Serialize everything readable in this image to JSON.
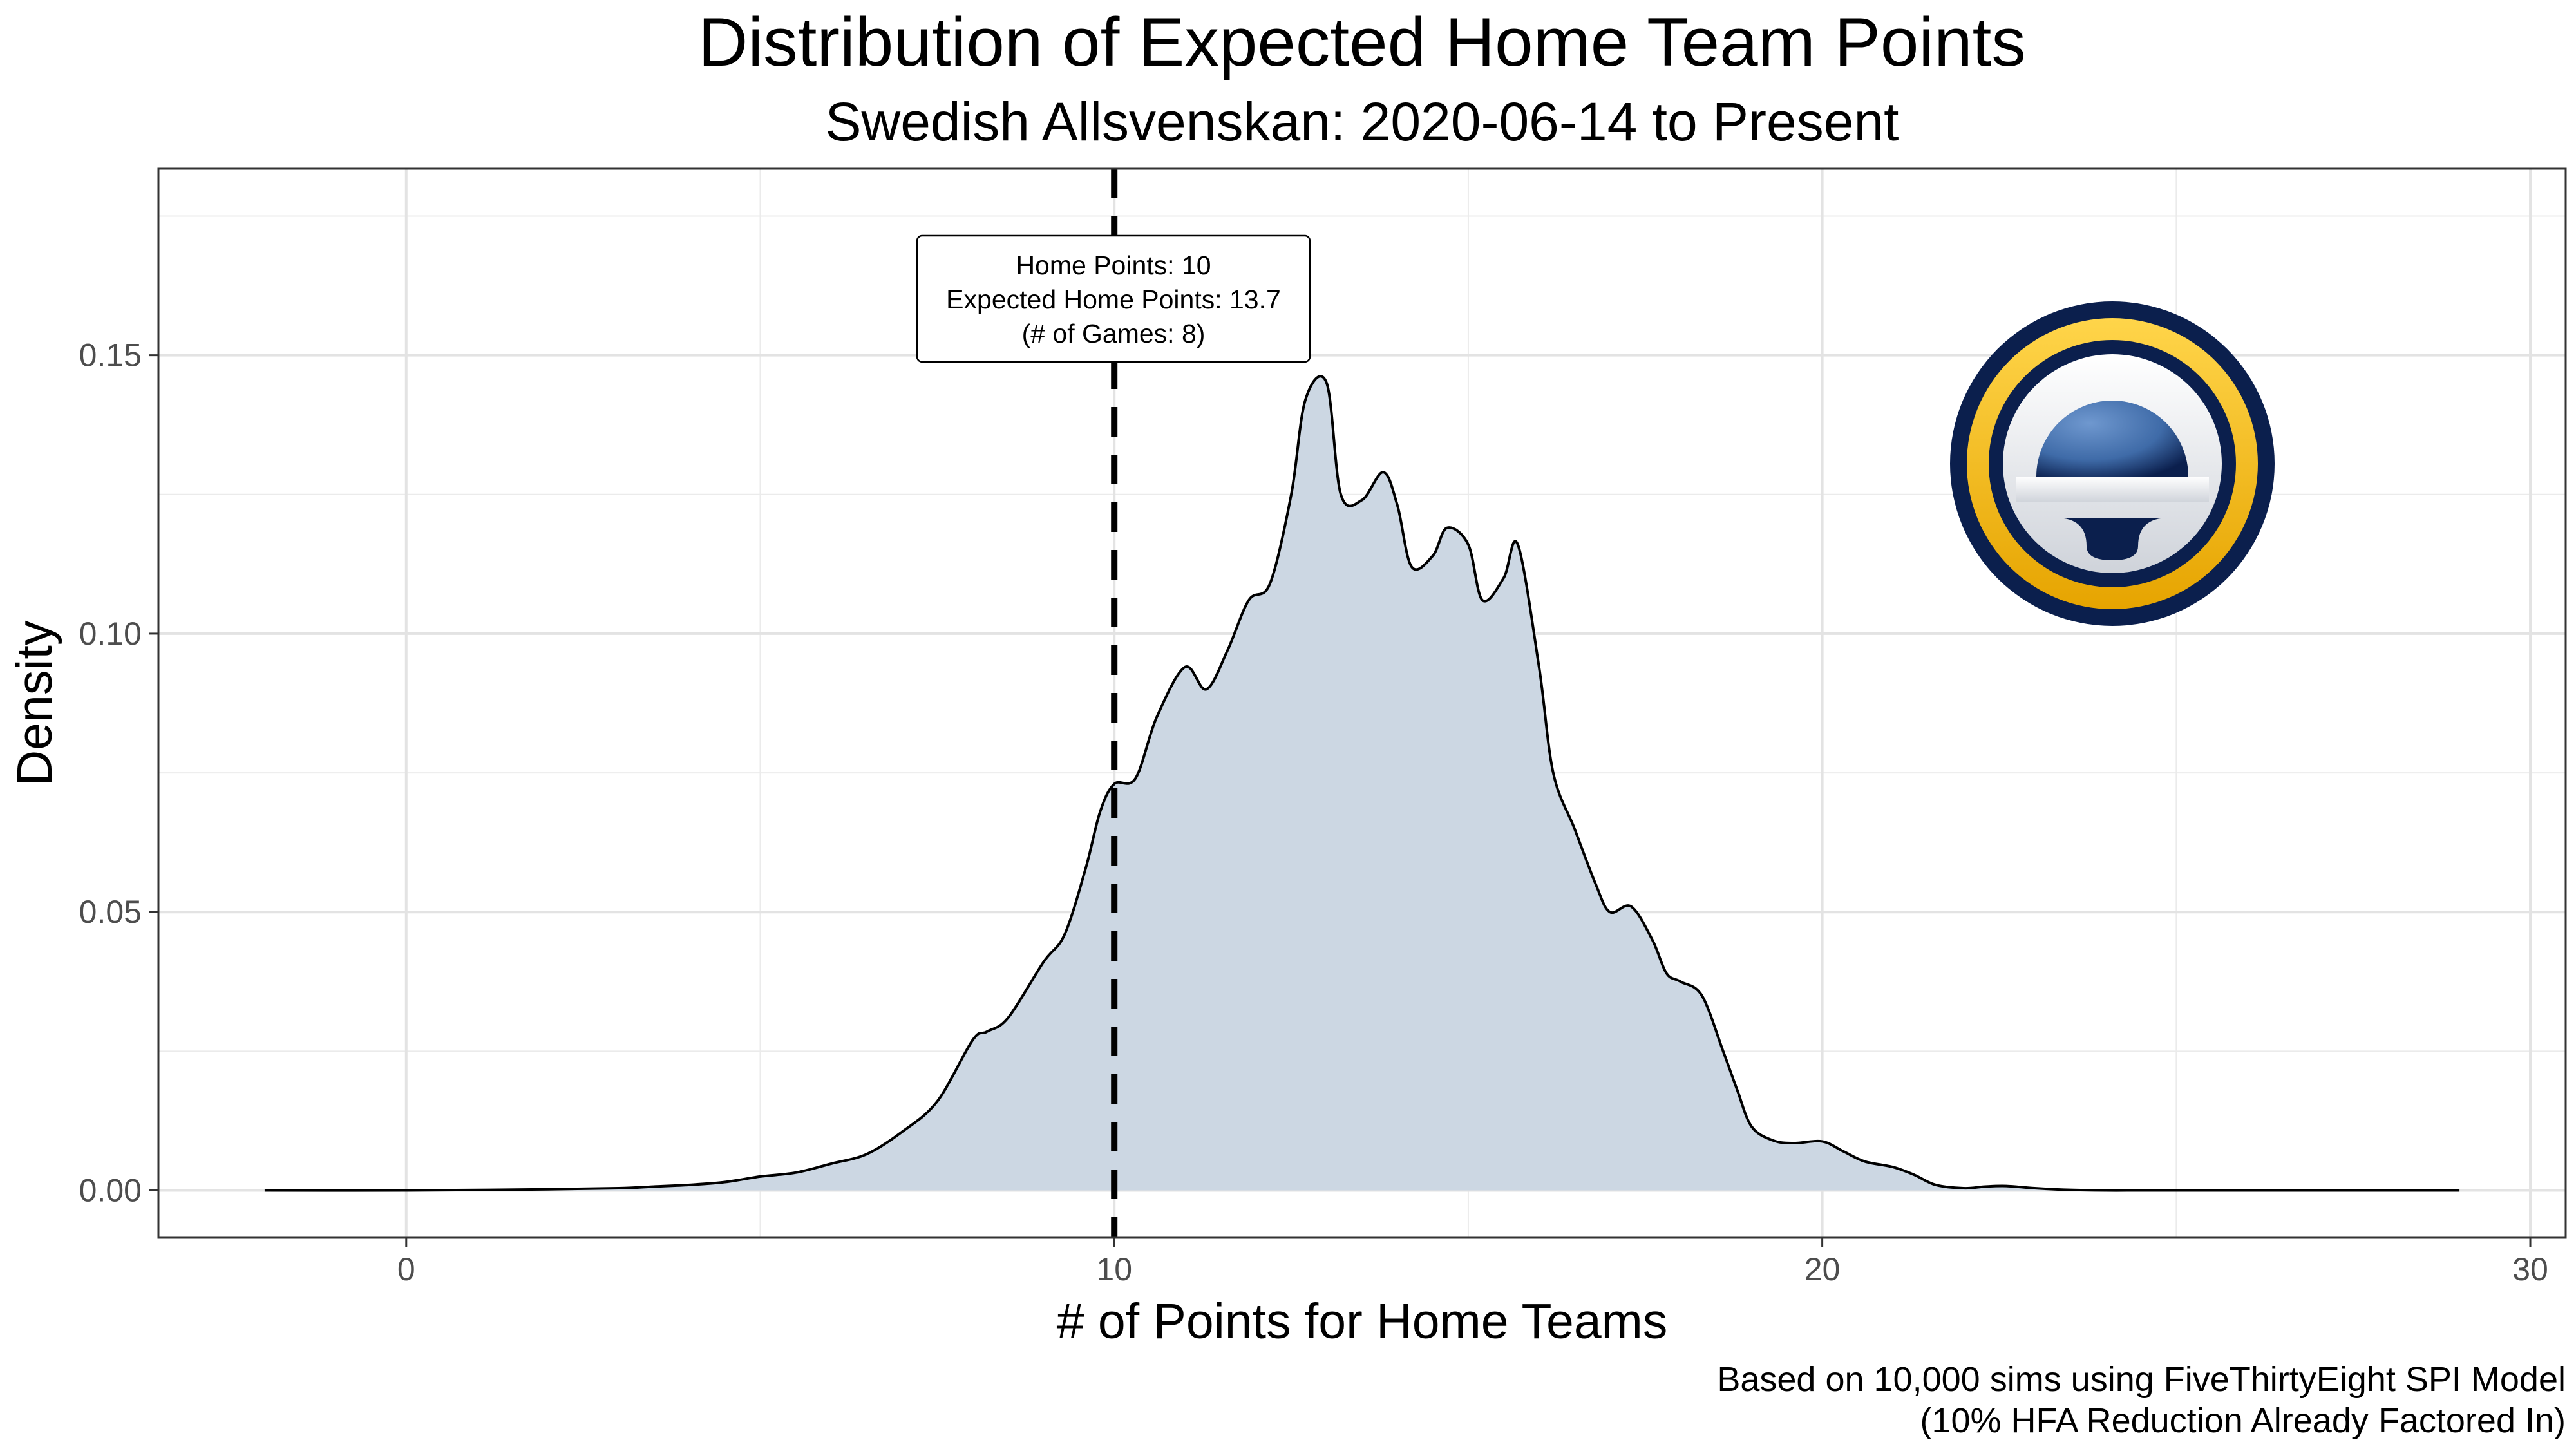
{
  "chart_data": {
    "type": "area",
    "title": "Distribution of Expected Home Team Points",
    "subtitle": "Swedish Allsvenskan: 2020-06-14 to Present",
    "xlabel": "# of Points for Home Teams",
    "ylabel": "Density",
    "xlim": [
      -3.5,
      30.5
    ],
    "ylim": [
      -0.0085,
      0.1835
    ],
    "x_ticks": [
      0,
      10,
      20,
      30
    ],
    "x_tick_labels": [
      "0",
      "10",
      "20",
      "30"
    ],
    "y_ticks": [
      0,
      0.05,
      0.1,
      0.15
    ],
    "y_tick_labels": [
      "0.00",
      "0.05",
      "0.10",
      "0.15"
    ],
    "grid": true,
    "fill_color": "#ccd7e3",
    "line_color": "#000000",
    "series": [
      {
        "x": [
          -2,
          0,
          2,
          3,
          3.5,
          4,
          4.5,
          5,
          5.5,
          6,
          6.5,
          7,
          7.5,
          8,
          8.2,
          8.5,
          9,
          9.3,
          9.6,
          9.8,
          10,
          10.3,
          10.6,
          11,
          11.3,
          11.6,
          11.9,
          12.2,
          12.5,
          12.7,
          13,
          13.2,
          13.5,
          13.8,
          14,
          14.2,
          14.5,
          14.7,
          15,
          15.2,
          15.5,
          15.7,
          16,
          16.2,
          16.5,
          16.8,
          17,
          17.3,
          17.6,
          17.8,
          18,
          18.3,
          18.6,
          18.8,
          19,
          19.3,
          19.6,
          20,
          20.3,
          20.6,
          21,
          21.3,
          21.6,
          22,
          22.3,
          22.6,
          23,
          23.5,
          24,
          24.5,
          25,
          26,
          27,
          29
        ],
        "y": [
          0,
          0,
          0.0002,
          0.0004,
          0.0007,
          0.001,
          0.0015,
          0.0025,
          0.0032,
          0.0048,
          0.0065,
          0.0105,
          0.016,
          0.027,
          0.0285,
          0.031,
          0.041,
          0.046,
          0.058,
          0.068,
          0.073,
          0.074,
          0.085,
          0.094,
          0.09,
          0.097,
          0.106,
          0.109,
          0.125,
          0.142,
          0.145,
          0.125,
          0.124,
          0.129,
          0.123,
          0.112,
          0.114,
          0.119,
          0.116,
          0.106,
          0.11,
          0.116,
          0.094,
          0.075,
          0.065,
          0.055,
          0.05,
          0.051,
          0.045,
          0.039,
          0.0375,
          0.035,
          0.025,
          0.018,
          0.0115,
          0.009,
          0.0085,
          0.0088,
          0.007,
          0.0052,
          0.0042,
          0.0028,
          0.001,
          0.0004,
          0.0007,
          0.0008,
          0.0004,
          0.0001,
          0,
          0,
          0,
          0,
          0,
          0
        ]
      }
    ],
    "reference_line": {
      "x": 10,
      "style": "dashed"
    },
    "annotation": {
      "lines": [
        "Home Points: 10",
        "Expected Home Points: 13.7",
        "(# of Games: 8)"
      ],
      "x": 10.0,
      "y": 0.158
    },
    "caption": [
      "Based on 10,000 sims using FiveThirtyEight SPI Model",
      "(10% HFA Reduction Already Factored In)"
    ]
  },
  "logo": {
    "name": "allsvenskan-logo",
    "colors": {
      "navy": "#0b1f4d",
      "gold": "#f5b800",
      "blue": "#3f6ba8",
      "white": "#ffffff"
    }
  }
}
